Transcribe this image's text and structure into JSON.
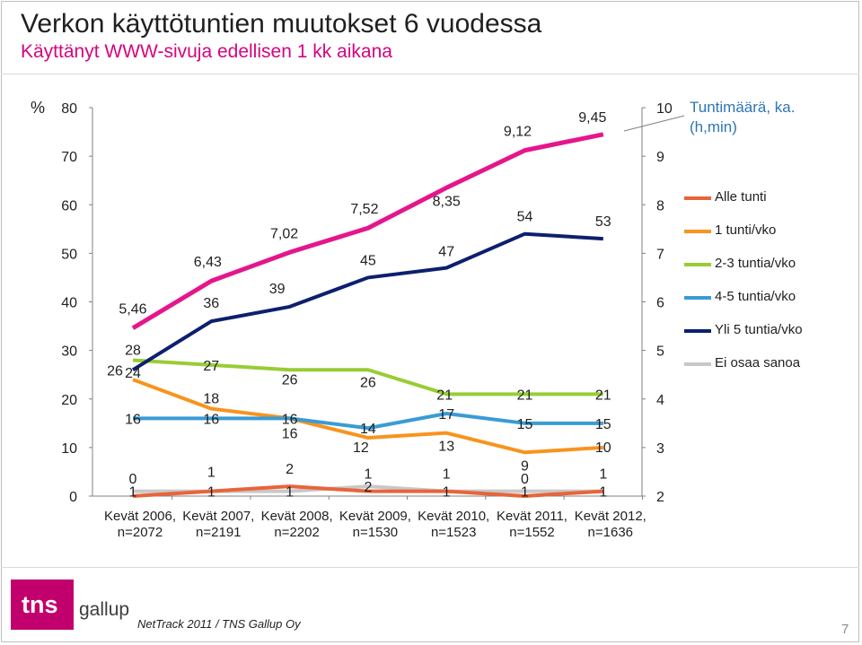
{
  "title": "Verkon käyttötuntien muutokset 6 vuodessa",
  "subtitle": "Käyttänyt WWW-sivuja edellisen 1 kk aikana",
  "footnote": "NetTrack 2011 / TNS Gallup Oy",
  "page_number": "7",
  "logo": {
    "tns": "tns",
    "gallup": "gallup"
  },
  "chart_data": {
    "type": "line",
    "y_unit_label": "%",
    "y2_title": "Tuntimäärä, ka. (h,min)",
    "ylim": [
      0,
      80
    ],
    "y_ticks": [
      0,
      10,
      20,
      30,
      40,
      50,
      60,
      70,
      80
    ],
    "y2lim": [
      2,
      10
    ],
    "y2_ticks": [
      2,
      3,
      4,
      5,
      6,
      7,
      8,
      9,
      10
    ],
    "grid": false,
    "legend_position": "right",
    "categories": [
      [
        "Kevät 2006,",
        "n=2072"
      ],
      [
        "Kevät 2007,",
        "n=2191"
      ],
      [
        "Kevät 2008,",
        "n=2202"
      ],
      [
        "Kevät 2009,",
        "n=1530"
      ],
      [
        "Kevät 2010,",
        "n=1523"
      ],
      [
        "Kevät 2011,",
        "n=1552"
      ],
      [
        "Kevät 2012,",
        "n=1636"
      ]
    ],
    "series": [
      {
        "name": "Alle tunti",
        "color": "#e8643a",
        "values": [
          0,
          1,
          2,
          1,
          1,
          0,
          1
        ]
      },
      {
        "name": "1 tunti/vko",
        "color": "#f7941d",
        "values": [
          24,
          18,
          16,
          12,
          13,
          9,
          10
        ]
      },
      {
        "name": "2-3 tuntia/vko",
        "color": "#99cc33",
        "values": [
          28,
          27,
          26,
          26,
          21,
          21,
          21
        ]
      },
      {
        "name": "4-5 tuntia/vko",
        "color": "#3a9bd5",
        "values": [
          16,
          16,
          16,
          14,
          17,
          15,
          15
        ]
      },
      {
        "name": "Yli 5 tuntia/vko",
        "color": "#0d1f6e",
        "values": [
          26,
          36,
          39,
          45,
          47,
          54,
          53
        ]
      },
      {
        "name": "Ei osaa sanoa",
        "color": "#c8c8c8",
        "values": [
          1,
          1,
          1,
          2,
          1,
          1,
          1
        ]
      }
    ],
    "hours_series": {
      "color": "#e5168c",
      "axis": "right",
      "values": [
        5.46,
        6.43,
        7.02,
        7.52,
        8.35,
        9.12,
        9.45
      ],
      "labels": [
        "5,46",
        "6,43",
        "7,02",
        "7,52",
        "8,35",
        "9,12",
        "9,45"
      ]
    }
  }
}
